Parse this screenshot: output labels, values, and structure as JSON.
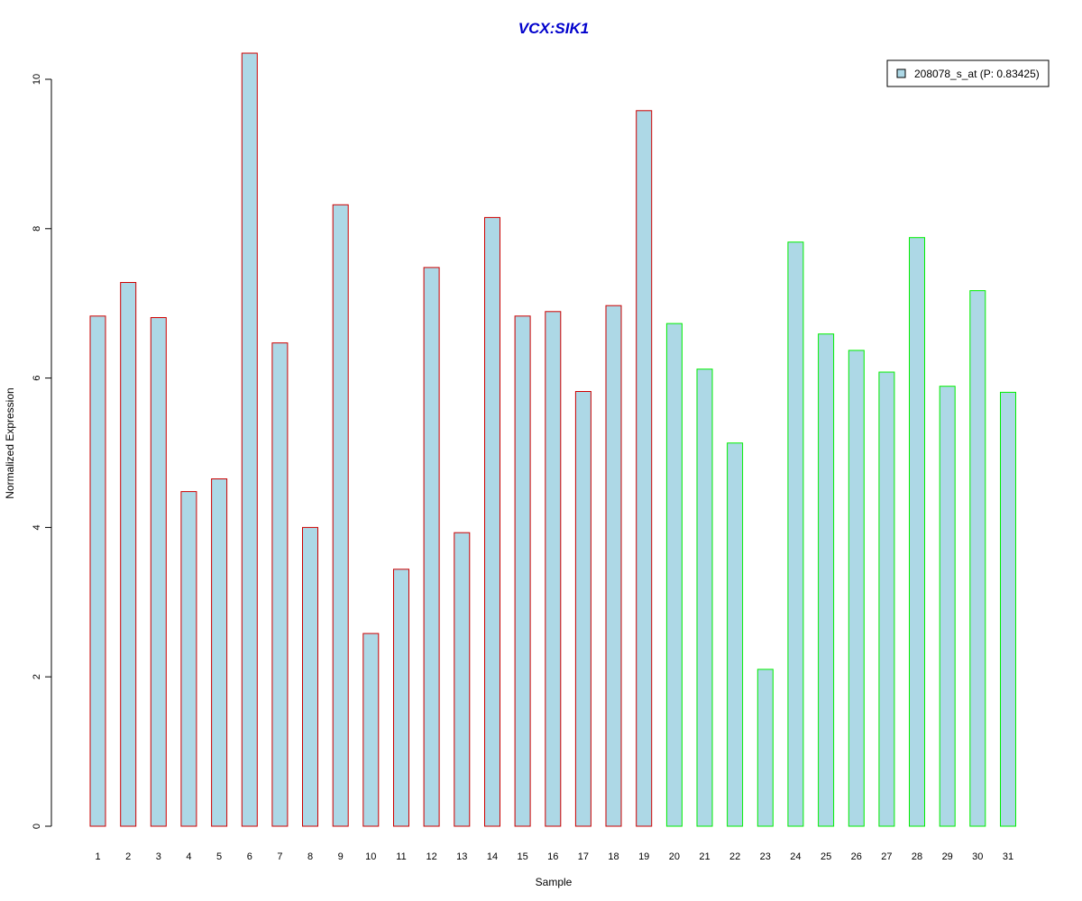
{
  "chart_data": {
    "type": "bar",
    "title": "VCX:SIK1",
    "xlabel": "Sample",
    "ylabel": "Normalized Expression",
    "ylim": [
      0,
      10.5
    ],
    "y_ticks": [
      0,
      2,
      4,
      6,
      8,
      10
    ],
    "categories": [
      "1",
      "2",
      "3",
      "4",
      "5",
      "6",
      "7",
      "8",
      "9",
      "10",
      "11",
      "12",
      "13",
      "14",
      "15",
      "16",
      "17",
      "18",
      "19",
      "20",
      "21",
      "22",
      "23",
      "24",
      "25",
      "26",
      "27",
      "28",
      "29",
      "30",
      "31"
    ],
    "series": [
      {
        "name": "208078_s_at (P: 0.83425)",
        "values": [
          6.83,
          7.28,
          6.81,
          4.48,
          4.65,
          10.35,
          6.47,
          4.0,
          8.32,
          2.58,
          3.44,
          7.48,
          3.93,
          8.15,
          6.83,
          6.89,
          5.82,
          6.97,
          9.58,
          6.73,
          6.12,
          5.13,
          2.1,
          7.82,
          6.59,
          6.37,
          6.08,
          7.88,
          5.89,
          7.17,
          5.81
        ]
      }
    ],
    "bar_fill": "#add8e6",
    "group_border_colors": [
      "#cc0000",
      "#cc0000",
      "#cc0000",
      "#cc0000",
      "#cc0000",
      "#cc0000",
      "#cc0000",
      "#cc0000",
      "#cc0000",
      "#cc0000",
      "#cc0000",
      "#cc0000",
      "#cc0000",
      "#cc0000",
      "#cc0000",
      "#cc0000",
      "#cc0000",
      "#cc0000",
      "#cc0000",
      "#00ee00",
      "#00ee00",
      "#00ee00",
      "#00ee00",
      "#00ee00",
      "#00ee00",
      "#00ee00",
      "#00ee00",
      "#00ee00",
      "#00ee00",
      "#00ee00",
      "#00ee00"
    ],
    "title_color": "#0000cc",
    "legend_position": "top-right",
    "grid": false
  }
}
